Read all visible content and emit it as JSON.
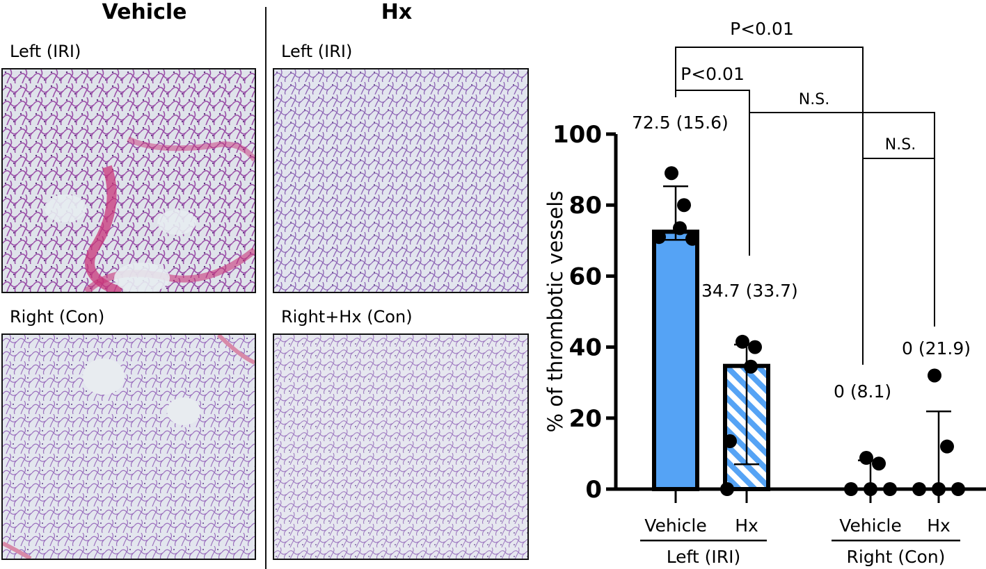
{
  "figure": {
    "columns": [
      {
        "title": "Vehicle"
      },
      {
        "title": "Hx"
      }
    ],
    "panels": [
      {
        "label": "Left (IRI)"
      },
      {
        "label": "Left (IRI)"
      },
      {
        "label": "Right (Con)"
      },
      {
        "label": "Right+Hx (Con)"
      }
    ]
  },
  "chart_data": {
    "type": "bar",
    "ylabel": "% of thrombotic vessels",
    "ylim": [
      0,
      100
    ],
    "yticks": [
      0,
      20,
      40,
      60,
      80,
      100
    ],
    "groups": [
      {
        "label": "Left (IRI)",
        "categories": [
          "Vehicle",
          "Hx"
        ]
      },
      {
        "label": "Right (Con)",
        "categories": [
          "Vehicle",
          "Hx"
        ]
      }
    ],
    "bars": [
      {
        "group": "Left (IRI)",
        "category": "Vehicle",
        "value": 72.5,
        "error_low": 70.2,
        "error_high": 85.3,
        "points": [
          89,
          80,
          73.5,
          71,
          70.5
        ],
        "annotation": "72.5 (15.6)",
        "fill": "solid"
      },
      {
        "group": "Left (IRI)",
        "category": "Hx",
        "value": 34.7,
        "error_low": 7,
        "error_high": 40.7,
        "points": [
          41.5,
          40,
          34.5,
          13.5,
          0
        ],
        "annotation": "34.7 (33.7)",
        "fill": "hatched"
      },
      {
        "group": "Right (Con)",
        "category": "Vehicle",
        "value": 0,
        "error_low": 0,
        "error_high": 8.1,
        "points": [
          8.8,
          7.2,
          0,
          0,
          0
        ],
        "annotation": "0 (8.1)",
        "fill": "solid"
      },
      {
        "group": "Right (Con)",
        "category": "Hx",
        "value": 0,
        "error_low": 0,
        "error_high": 21.9,
        "points": [
          32,
          12,
          0,
          0,
          0
        ],
        "annotation": "0 (21.9)",
        "fill": "hatched"
      }
    ],
    "significance": [
      {
        "label": "P<0.01",
        "between": "Left Vehicle vs Right Vehicle"
      },
      {
        "label": "P<0.01",
        "between": "Left Vehicle vs Left Hx"
      },
      {
        "label": "N.S.",
        "between": "Left Hx vs Right Vehicle"
      },
      {
        "label": "N.S.",
        "between": "Right Vehicle vs Right Hx"
      }
    ],
    "colors": {
      "bar": "#55a3f5",
      "outline": "#000000",
      "hatch_bg": "#ffffff"
    }
  }
}
